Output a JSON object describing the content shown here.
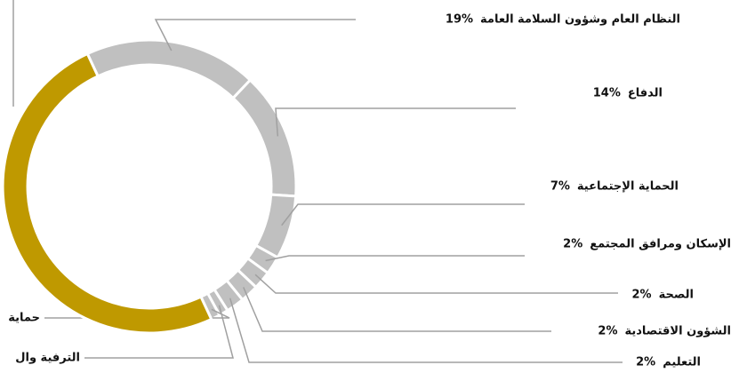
{
  "chart_data": {
    "type": "donut",
    "categories": [
      "النظام العام وشؤون السلامة العامة",
      "الدفاع",
      "الحماية الإجتماعية",
      "الإسكان ومرافق المجتمع",
      "الصحة",
      "الشؤون الاقتصادية",
      "التعليم",
      "الترفية وال",
      "حماية",
      null
    ],
    "values": [
      19,
      14,
      7,
      2,
      2,
      2,
      2,
      1,
      1,
      50
    ],
    "value_labels": [
      "19%",
      "14%",
      "7%",
      "2%",
      "2%",
      "2%",
      "2%",
      null,
      null,
      null
    ],
    "colors": [
      "#c0c0c0",
      "#c0c0c0",
      "#c0c0c0",
      "#c0c0c0",
      "#c0c0c0",
      "#c0c0c0",
      "#c0c0c0",
      "#c0c0c0",
      "#c0c0c0",
      "#bf9900"
    ]
  }
}
